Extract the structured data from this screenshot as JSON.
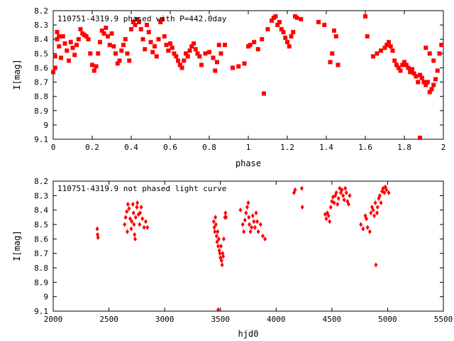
{
  "chart_data": [
    {
      "type": "scatter",
      "title": "110751-4319.9 phased with P=442.0day",
      "xlabel": "phase",
      "ylabel": "I[mag]",
      "xlim": [
        0,
        2
      ],
      "ylim": [
        8.2,
        9.1
      ],
      "y_inverted": true,
      "grid": false,
      "legend": "none",
      "marker_color": "#ff0000",
      "marker": "filled-square",
      "x_ticks": [
        "0",
        "0.2",
        "0.4",
        "0.6",
        "0.8",
        "1",
        "1.2",
        "1.4",
        "1.6",
        "1.8",
        "2"
      ],
      "y_ticks": [
        "8.2",
        "8.3",
        "8.4",
        "8.5",
        "8.6",
        "8.7",
        "8.8",
        "8.9",
        "9",
        "9.1"
      ],
      "points": [
        [
          0.0,
          8.63
        ],
        [
          0.01,
          8.6
        ],
        [
          0.01,
          8.52
        ],
        [
          0.02,
          8.4
        ],
        [
          0.02,
          8.35
        ],
        [
          0.03,
          8.38
        ],
        [
          0.03,
          8.45
        ],
        [
          0.04,
          8.53
        ],
        [
          0.05,
          8.38
        ],
        [
          0.06,
          8.43
        ],
        [
          0.07,
          8.48
        ],
        [
          0.08,
          8.55
        ],
        [
          0.09,
          8.42
        ],
        [
          0.1,
          8.46
        ],
        [
          0.11,
          8.51
        ],
        [
          0.12,
          8.44
        ],
        [
          0.13,
          8.4
        ],
        [
          0.14,
          8.33
        ],
        [
          0.15,
          8.36
        ],
        [
          0.16,
          8.37
        ],
        [
          0.17,
          8.38
        ],
        [
          0.18,
          8.4
        ],
        [
          0.19,
          8.5
        ],
        [
          0.2,
          8.58
        ],
        [
          0.21,
          8.62
        ],
        [
          0.22,
          8.59
        ],
        [
          0.23,
          8.5
        ],
        [
          0.24,
          8.42
        ],
        [
          0.25,
          8.34
        ],
        [
          0.26,
          8.36
        ],
        [
          0.27,
          8.32
        ],
        [
          0.28,
          8.38
        ],
        [
          0.29,
          8.44
        ],
        [
          0.3,
          8.36
        ],
        [
          0.31,
          8.45
        ],
        [
          0.32,
          8.5
        ],
        [
          0.33,
          8.57
        ],
        [
          0.34,
          8.55
        ],
        [
          0.35,
          8.48
        ],
        [
          0.36,
          8.44
        ],
        [
          0.37,
          8.4
        ],
        [
          0.38,
          8.5
        ],
        [
          0.39,
          8.55
        ],
        [
          0.4,
          8.33
        ],
        [
          0.41,
          8.28
        ],
        [
          0.42,
          8.3
        ],
        [
          0.43,
          8.26
        ],
        [
          0.44,
          8.28
        ],
        [
          0.45,
          8.33
        ],
        [
          0.46,
          8.4
        ],
        [
          0.47,
          8.47
        ],
        [
          0.48,
          8.3
        ],
        [
          0.49,
          8.35
        ],
        [
          0.5,
          8.42
        ],
        [
          0.51,
          8.49
        ],
        [
          0.52,
          8.45
        ],
        [
          0.53,
          8.52
        ],
        [
          0.54,
          8.4
        ],
        [
          0.55,
          8.28
        ],
        [
          0.56,
          8.26
        ],
        [
          0.57,
          8.38
        ],
        [
          0.58,
          8.44
        ],
        [
          0.59,
          8.48
        ],
        [
          0.6,
          8.43
        ],
        [
          0.61,
          8.46
        ],
        [
          0.62,
          8.5
        ],
        [
          0.63,
          8.52
        ],
        [
          0.64,
          8.55
        ],
        [
          0.65,
          8.58
        ],
        [
          0.66,
          8.6
        ],
        [
          0.67,
          8.55
        ],
        [
          0.68,
          8.5
        ],
        [
          0.69,
          8.52
        ],
        [
          0.7,
          8.48
        ],
        [
          0.71,
          8.45
        ],
        [
          0.72,
          8.43
        ],
        [
          0.73,
          8.47
        ],
        [
          0.74,
          8.5
        ],
        [
          0.75,
          8.52
        ],
        [
          0.76,
          8.58
        ],
        [
          0.78,
          8.5
        ],
        [
          0.8,
          8.49
        ],
        [
          0.82,
          8.53
        ],
        [
          0.83,
          8.62
        ],
        [
          0.84,
          8.56
        ],
        [
          0.85,
          8.44
        ],
        [
          0.86,
          8.5
        ],
        [
          0.88,
          8.44
        ],
        [
          0.92,
          8.6
        ],
        [
          0.95,
          8.59
        ],
        [
          0.98,
          8.57
        ],
        [
          1.0,
          8.45
        ],
        [
          1.01,
          8.44
        ],
        [
          1.03,
          8.42
        ],
        [
          1.05,
          8.47
        ],
        [
          1.07,
          8.4
        ],
        [
          1.08,
          8.78
        ],
        [
          1.1,
          8.33
        ],
        [
          1.12,
          8.27
        ],
        [
          1.13,
          8.25
        ],
        [
          1.14,
          8.24
        ],
        [
          1.15,
          8.3
        ],
        [
          1.16,
          8.28
        ],
        [
          1.17,
          8.33
        ],
        [
          1.18,
          8.35
        ],
        [
          1.19,
          8.39
        ],
        [
          1.2,
          8.42
        ],
        [
          1.21,
          8.45
        ],
        [
          1.22,
          8.38
        ],
        [
          1.23,
          8.35
        ],
        [
          1.24,
          8.24
        ],
        [
          1.25,
          8.25
        ],
        [
          1.27,
          8.26
        ],
        [
          1.36,
          8.28
        ],
        [
          1.39,
          8.3
        ],
        [
          1.42,
          8.56
        ],
        [
          1.43,
          8.5
        ],
        [
          1.44,
          8.34
        ],
        [
          1.45,
          8.38
        ],
        [
          1.46,
          8.58
        ],
        [
          1.6,
          8.24
        ],
        [
          1.61,
          8.38
        ],
        [
          1.64,
          8.52
        ],
        [
          1.66,
          8.5
        ],
        [
          1.68,
          8.48
        ],
        [
          1.7,
          8.46
        ],
        [
          1.71,
          8.44
        ],
        [
          1.72,
          8.42
        ],
        [
          1.73,
          8.45
        ],
        [
          1.74,
          8.48
        ],
        [
          1.75,
          8.55
        ],
        [
          1.76,
          8.58
        ],
        [
          1.77,
          8.6
        ],
        [
          1.78,
          8.62
        ],
        [
          1.79,
          8.58
        ],
        [
          1.8,
          8.56
        ],
        [
          1.81,
          8.58
        ],
        [
          1.82,
          8.6
        ],
        [
          1.83,
          8.63
        ],
        [
          1.84,
          8.61
        ],
        [
          1.85,
          8.64
        ],
        [
          1.86,
          8.66
        ],
        [
          1.87,
          8.7
        ],
        [
          1.88,
          8.65
        ],
        [
          1.89,
          8.67
        ],
        [
          1.9,
          8.7
        ],
        [
          1.91,
          8.72
        ],
        [
          1.92,
          8.7
        ],
        [
          1.93,
          8.77
        ],
        [
          1.94,
          8.75
        ],
        [
          1.95,
          8.72
        ],
        [
          1.96,
          8.68
        ],
        [
          1.97,
          8.62
        ],
        [
          1.88,
          9.09
        ],
        [
          1.91,
          8.46
        ],
        [
          1.93,
          8.5
        ],
        [
          1.95,
          8.55
        ],
        [
          1.98,
          8.5
        ],
        [
          1.99,
          8.44
        ]
      ]
    },
    {
      "type": "scatter",
      "title": "110751-4319.9 not phased light curve",
      "xlabel": "hjd0",
      "ylabel": "I[mag]",
      "xlim": [
        2000,
        5500
      ],
      "ylim": [
        8.2,
        9.1
      ],
      "y_inverted": true,
      "grid": false,
      "legend": "none",
      "marker_color": "#ff0000",
      "marker": "filled-diamond",
      "x_ticks": [
        "2000",
        "2500",
        "3000",
        "3500",
        "4000",
        "4500",
        "5000",
        "5500"
      ],
      "y_ticks": [
        "8.2",
        "8.3",
        "8.4",
        "8.5",
        "8.6",
        "8.7",
        "8.8",
        "8.9",
        "9",
        "9.1"
      ],
      "points": [
        [
          2395,
          8.53
        ],
        [
          2398,
          8.57
        ],
        [
          2402,
          8.59
        ],
        [
          2640,
          8.5
        ],
        [
          2650,
          8.45
        ],
        [
          2660,
          8.41
        ],
        [
          2665,
          8.55
        ],
        [
          2670,
          8.36
        ],
        [
          2680,
          8.39
        ],
        [
          2690,
          8.46
        ],
        [
          2700,
          8.53
        ],
        [
          2705,
          8.48
        ],
        [
          2715,
          8.36
        ],
        [
          2720,
          8.42
        ],
        [
          2725,
          8.5
        ],
        [
          2730,
          8.57
        ],
        [
          2735,
          8.6
        ],
        [
          2740,
          8.45
        ],
        [
          2750,
          8.38
        ],
        [
          2755,
          8.35
        ],
        [
          2765,
          8.43
        ],
        [
          2775,
          8.5
        ],
        [
          2780,
          8.42
        ],
        [
          2790,
          8.38
        ],
        [
          2800,
          8.46
        ],
        [
          2815,
          8.52
        ],
        [
          2830,
          8.48
        ],
        [
          2845,
          8.52
        ],
        [
          3440,
          8.48
        ],
        [
          3445,
          8.52
        ],
        [
          3450,
          8.55
        ],
        [
          3455,
          8.45
        ],
        [
          3460,
          8.5
        ],
        [
          3465,
          8.58
        ],
        [
          3470,
          8.62
        ],
        [
          3475,
          8.55
        ],
        [
          3480,
          8.65
        ],
        [
          3485,
          8.6
        ],
        [
          3490,
          8.68
        ],
        [
          3495,
          8.7
        ],
        [
          3500,
          8.73
        ],
        [
          3505,
          8.65
        ],
        [
          3510,
          8.75
        ],
        [
          3515,
          8.78
        ],
        [
          3520,
          8.7
        ],
        [
          3525,
          8.72
        ],
        [
          3530,
          8.6
        ],
        [
          3540,
          8.45
        ],
        [
          3545,
          8.42
        ],
        [
          3550,
          8.45
        ],
        [
          3480,
          9.09
        ],
        [
          3680,
          8.4
        ],
        [
          3700,
          8.5
        ],
        [
          3710,
          8.55
        ],
        [
          3720,
          8.47
        ],
        [
          3730,
          8.42
        ],
        [
          3740,
          8.38
        ],
        [
          3750,
          8.35
        ],
        [
          3755,
          8.45
        ],
        [
          3760,
          8.5
        ],
        [
          3770,
          8.55
        ],
        [
          3780,
          8.52
        ],
        [
          3790,
          8.44
        ],
        [
          3800,
          8.48
        ],
        [
          3810,
          8.52
        ],
        [
          3820,
          8.42
        ],
        [
          3830,
          8.48
        ],
        [
          3840,
          8.55
        ],
        [
          3860,
          8.5
        ],
        [
          3880,
          8.58
        ],
        [
          3900,
          8.6
        ],
        [
          4160,
          8.28
        ],
        [
          4170,
          8.26
        ],
        [
          4230,
          8.25
        ],
        [
          4235,
          8.38
        ],
        [
          4440,
          8.43
        ],
        [
          4450,
          8.46
        ],
        [
          4460,
          8.42
        ],
        [
          4470,
          8.44
        ],
        [
          4480,
          8.48
        ],
        [
          4490,
          8.38
        ],
        [
          4500,
          8.34
        ],
        [
          4510,
          8.31
        ],
        [
          4520,
          8.35
        ],
        [
          4530,
          8.3
        ],
        [
          4540,
          8.28
        ],
        [
          4550,
          8.36
        ],
        [
          4560,
          8.32
        ],
        [
          4570,
          8.25
        ],
        [
          4580,
          8.28
        ],
        [
          4590,
          8.26
        ],
        [
          4600,
          8.3
        ],
        [
          4610,
          8.33
        ],
        [
          4620,
          8.25
        ],
        [
          4630,
          8.28
        ],
        [
          4640,
          8.34
        ],
        [
          4650,
          8.36
        ],
        [
          4660,
          8.3
        ],
        [
          4760,
          8.5
        ],
        [
          4780,
          8.53
        ],
        [
          4800,
          8.44
        ],
        [
          4810,
          8.46
        ],
        [
          4820,
          8.52
        ],
        [
          4840,
          8.55
        ],
        [
          4850,
          8.42
        ],
        [
          4860,
          8.38
        ],
        [
          4870,
          8.4
        ],
        [
          4880,
          8.44
        ],
        [
          4890,
          8.35
        ],
        [
          4895,
          8.78
        ],
        [
          4905,
          8.42
        ],
        [
          4910,
          8.38
        ],
        [
          4920,
          8.32
        ],
        [
          4930,
          8.3
        ],
        [
          4940,
          8.35
        ],
        [
          4950,
          8.27
        ],
        [
          4960,
          8.25
        ],
        [
          4970,
          8.28
        ],
        [
          4980,
          8.24
        ],
        [
          4990,
          8.26
        ],
        [
          5010,
          8.28
        ]
      ]
    }
  ]
}
